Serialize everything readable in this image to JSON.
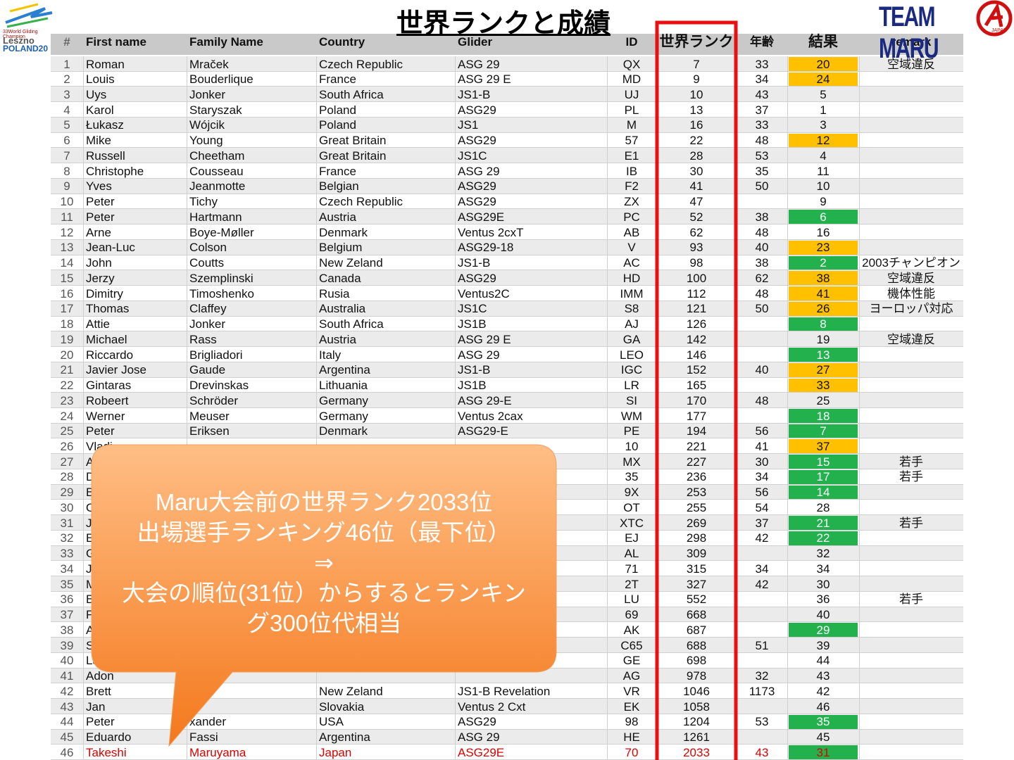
{
  "title": "世界ランクと成績",
  "logo_left": [
    "33World Gliding Champion",
    "Leszno",
    "POLAND20"
  ],
  "logo_right": [
    "TEAM MARU",
    "JAPAN"
  ],
  "table": {
    "header": [
      "#",
      "First name",
      "Family Name",
      "Country",
      "Glider",
      "ID",
      "世界ランク",
      "年齢",
      "結果",
      "remark"
    ],
    "rows": [
      [
        1,
        "Roman",
        "Mraček",
        "Czech Republic",
        "ASG 29",
        "QX",
        7,
        33,
        20,
        "空域違反"
      ],
      [
        2,
        "Louis",
        "Bouderlique",
        "France",
        "ASG 29 E",
        "MD",
        9,
        34,
        24,
        null
      ],
      [
        3,
        "Uys",
        "Jonker",
        "South Africa",
        "JS1-B",
        "UJ",
        10,
        43,
        5,
        null
      ],
      [
        4,
        "Karol",
        "Staryszak",
        "Poland",
        "ASG29",
        "PL",
        13,
        37,
        1,
        null
      ],
      [
        5,
        "Łukasz",
        "Wójcik",
        "Poland",
        "JS1",
        "M",
        16,
        33,
        3,
        null
      ],
      [
        6,
        "Mike",
        "Young",
        "Great Britain",
        "ASG29",
        "57",
        22,
        48,
        12,
        null
      ],
      [
        7,
        "Russell",
        "Cheetham",
        "Great Britain",
        "JS1C",
        "E1",
        28,
        53,
        4,
        null
      ],
      [
        8,
        "Christophe",
        "Cousseau",
        "France",
        "ASG 29",
        "IB",
        30,
        35,
        11,
        null
      ],
      [
        9,
        "Yves",
        "Jeanmotte",
        "Belgian",
        "ASG29",
        "F2",
        41,
        50,
        10,
        null
      ],
      [
        10,
        "Peter",
        "Tichy",
        "Czech Republic",
        "ASG29",
        "ZX",
        47,
        null,
        9,
        null
      ],
      [
        11,
        "Peter",
        "Hartmann",
        "Austria",
        "ASG29E",
        "PC",
        52,
        38,
        6,
        null
      ],
      [
        12,
        "Arne",
        "Boye-Møller",
        "Denmark",
        "Ventus 2cxT",
        "AB",
        62,
        48,
        16,
        null
      ],
      [
        13,
        "Jean-Luc",
        "Colson",
        "Belgium",
        "ASG29-18",
        "V",
        93,
        40,
        23,
        null
      ],
      [
        14,
        "John",
        "Coutts",
        "New Zeland",
        "JS1-B",
        "AC",
        98,
        38,
        2,
        "2003チャンピオン"
      ],
      [
        15,
        "Jerzy",
        "Szemplinski",
        "Canada",
        "ASG29",
        "HD",
        100,
        62,
        38,
        "空域違反"
      ],
      [
        16,
        "Dimitry",
        "Timoshenko",
        "Rusia",
        "Ventus2C",
        "IMM",
        112,
        48,
        41,
        "機体性能"
      ],
      [
        17,
        "Thomas",
        "Claffey",
        "Australia",
        "JS1C",
        "S8",
        121,
        50,
        26,
        "ヨーロッパ対応"
      ],
      [
        18,
        "Attie",
        "Jonker",
        "South Africa",
        "JS1B",
        "AJ",
        126,
        null,
        8,
        null
      ],
      [
        19,
        "Michael",
        "Rass",
        "Austria",
        "ASG 29 E",
        "GA",
        142,
        null,
        19,
        "空域違反"
      ],
      [
        20,
        "Riccardo",
        "Brigliadori",
        "Italy",
        "ASG 29",
        "LEO",
        146,
        null,
        13,
        null
      ],
      [
        21,
        "Javier Jose",
        "Gaude",
        "Argentina",
        "JS1-B",
        "IGC",
        152,
        40,
        27,
        null
      ],
      [
        22,
        "Gintaras",
        "Drevinskas",
        "Lithuania",
        "JS1B",
        "LR",
        165,
        null,
        33,
        null
      ],
      [
        23,
        "Robeert",
        "Schröder",
        "Germany",
        "ASG 29-E",
        "SI",
        170,
        48,
        25,
        null
      ],
      [
        24,
        "Werner",
        "Meuser",
        "Germany",
        "Ventus 2cax",
        "WM",
        177,
        null,
        18,
        null
      ],
      [
        25,
        "Peter",
        "Eriksen",
        "Denmark",
        "ASG29-E",
        "PE",
        194,
        56,
        7,
        null
      ],
      [
        26,
        "Vladi",
        null,
        null,
        null,
        "10",
        221,
        41,
        37,
        null
      ],
      [
        27,
        "Ak",
        null,
        null,
        null,
        "MX",
        227,
        30,
        15,
        "若手"
      ],
      [
        28,
        "D",
        null,
        null,
        null,
        "35",
        236,
        34,
        17,
        "若手"
      ],
      [
        29,
        "B",
        null,
        null,
        null,
        "9X",
        253,
        56,
        14,
        null
      ],
      [
        30,
        "O",
        null,
        null,
        null,
        "OT",
        255,
        54,
        28,
        null
      ],
      [
        31,
        "J",
        null,
        null,
        null,
        "XTC",
        269,
        37,
        21,
        "若手"
      ],
      [
        32,
        "E",
        null,
        null,
        null,
        "EJ",
        298,
        42,
        22,
        null
      ],
      [
        33,
        "G",
        null,
        null,
        null,
        "AL",
        309,
        null,
        32,
        null
      ],
      [
        34,
        "J",
        null,
        null,
        null,
        "71",
        315,
        34,
        34,
        null
      ],
      [
        35,
        "M",
        null,
        null,
        null,
        "2T",
        327,
        42,
        30,
        null
      ],
      [
        36,
        "B",
        null,
        null,
        null,
        "LU",
        552,
        null,
        36,
        "若手"
      ],
      [
        37,
        "F",
        null,
        null,
        null,
        "69",
        668,
        null,
        40,
        null
      ],
      [
        38,
        "A",
        null,
        null,
        null,
        "AK",
        687,
        null,
        29,
        null
      ],
      [
        39,
        "S",
        null,
        null,
        null,
        "C65",
        688,
        51,
        39,
        null
      ],
      [
        40,
        "La",
        null,
        null,
        null,
        "GE",
        698,
        null,
        44,
        null
      ],
      [
        41,
        "Adon",
        null,
        null,
        null,
        "AG",
        978,
        32,
        43,
        null
      ],
      [
        42,
        "Brett",
        null,
        "New Zeland",
        "JS1-B Revelation",
        "VR",
        1046,
        1173,
        42,
        null
      ],
      [
        43,
        "Jan",
        null,
        "Slovakia",
        "Ventus 2 Cxt",
        "EK",
        1058,
        null,
        46,
        null
      ],
      [
        44,
        "Peter",
        "xander",
        "USA",
        "ASG29",
        "98",
        1204,
        53,
        35,
        null
      ],
      [
        45,
        "Eduardo",
        "Fassi",
        "Argentina",
        "ASG 29",
        "HE",
        1261,
        null,
        45,
        null
      ],
      [
        46,
        "Takeshi",
        "Maruyama",
        "Japan",
        "ASG29E",
        "70",
        2033,
        43,
        31,
        null
      ]
    ],
    "result_colors": [
      "#ffc000",
      "#ffc000",
      null,
      null,
      null,
      "#ffc000",
      null,
      null,
      null,
      null,
      "#22b14c",
      null,
      "#ffc000",
      "#22b14c",
      "#ffc000",
      "#ffc000",
      "#ffc000",
      "#22b14c",
      null,
      "#22b14c",
      "#ffc000",
      "#ffc000",
      null,
      "#22b14c",
      "#22b14c",
      "#ffc000",
      "#22b14c",
      "#22b14c",
      "#22b14c",
      null,
      "#22b14c",
      "#22b14c",
      null,
      null,
      null,
      null,
      null,
      "#22b14c",
      null,
      null,
      null,
      null,
      null,
      "#22b14c",
      null,
      "#22b14c"
    ]
  },
  "callout": [
    "Maru大会前の世界ランク2033位",
    "出場選手ランキング46位（最下位）",
    "⇒",
    "大会の順位(31位）からするとランキン",
    "グ300位代相当"
  ]
}
